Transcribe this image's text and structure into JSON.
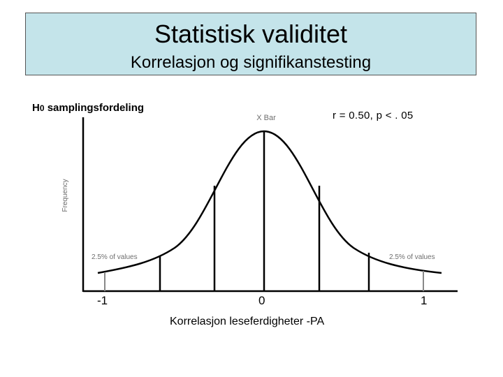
{
  "header": {
    "title": "Statistisk validitet",
    "subtitle": "Korrelasjon og signifikanstesting"
  },
  "distribution_label": {
    "prefix": "H",
    "subscript": "0",
    "suffix": " samplingsfordeling"
  },
  "statistic": "r = 0.50, p < . 05",
  "figure": {
    "ylabel": "Frequency",
    "mean_label": "X Bar",
    "left_tail_label": "2.5% of values",
    "right_tail_label": "2.5% of values"
  },
  "x_ticks": [
    "-1",
    "0",
    "1"
  ],
  "xlabel": "Korrelasjon leseferdigheter -PA",
  "colors": {
    "title_background": "#c4e4ea",
    "curve": "#000000",
    "annotation_text": "#6e6e6e"
  }
}
